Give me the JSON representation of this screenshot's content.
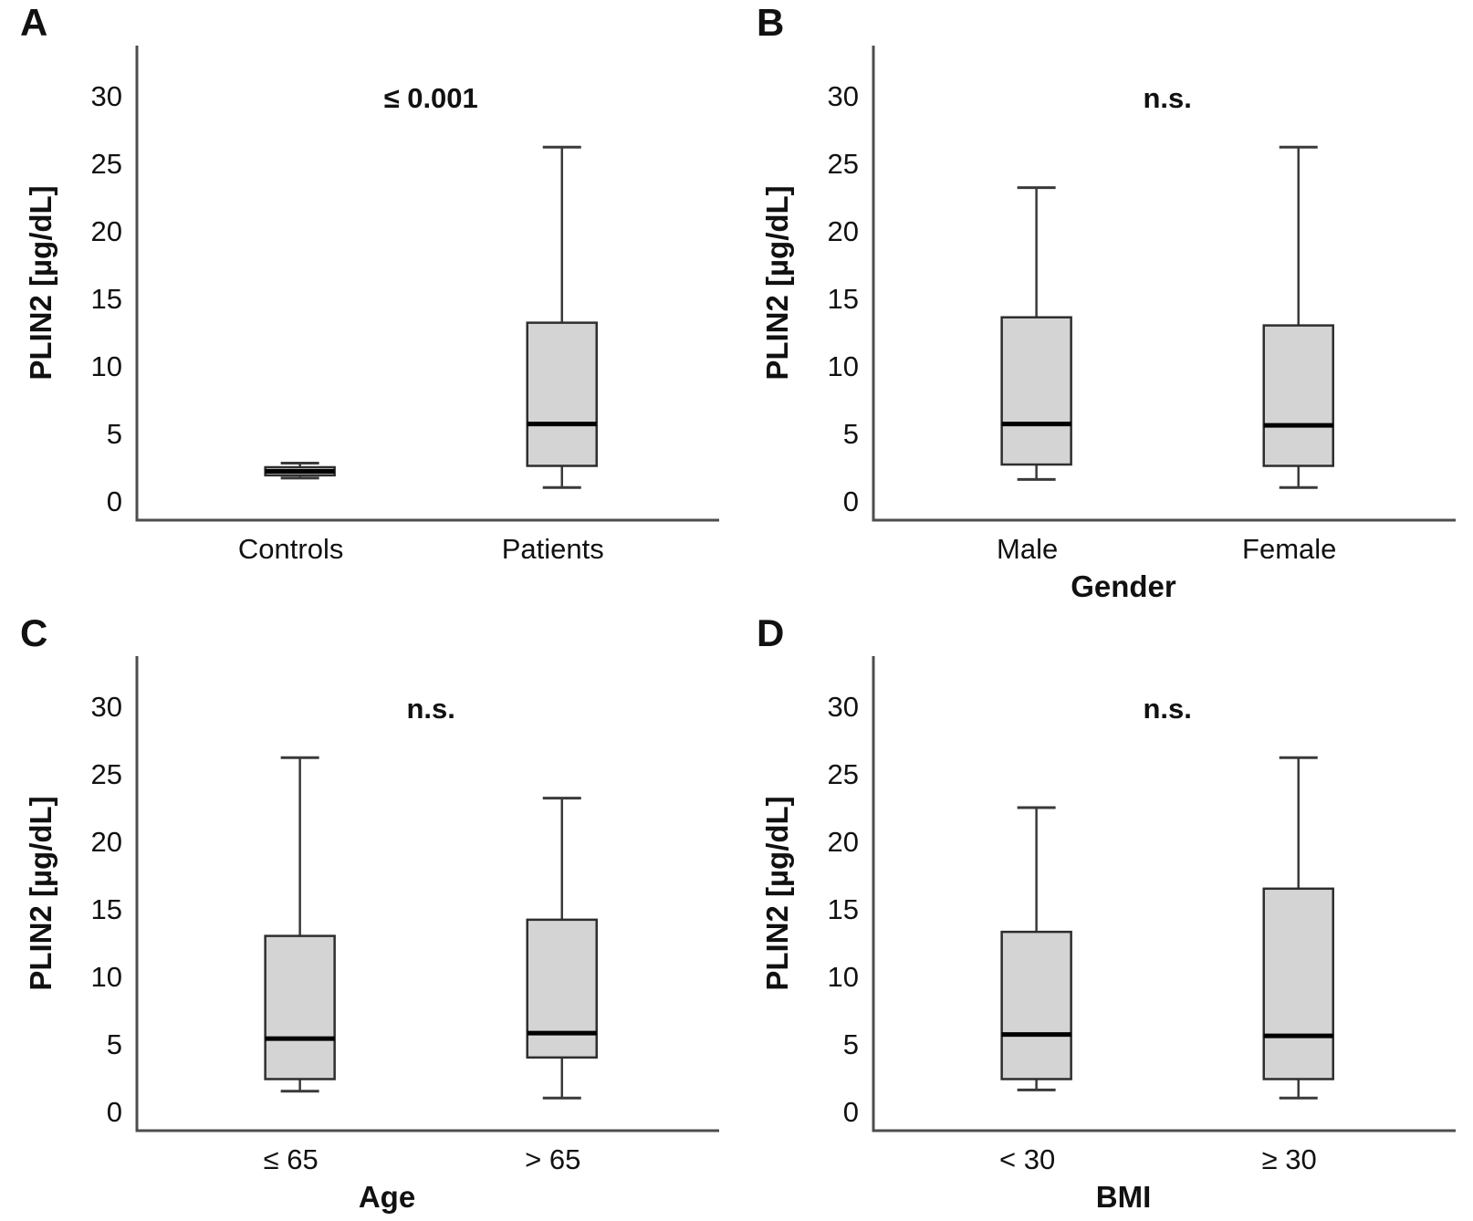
{
  "figure": {
    "background": "#ffffff",
    "description": "Four-panel box plot figure comparing PLIN2 serum levels"
  },
  "style": {
    "box_fill": "#d4d4d4",
    "box_border": "#2e2e2e",
    "median_color": "#000000",
    "whisker_color": "#3a3a3a",
    "axis_color": "#4d4d4d",
    "text_color": "#111111"
  },
  "chart_data": [
    {
      "panel": "A",
      "type": "box",
      "title": "",
      "ylabel": "PLIN2 [µg/dL]",
      "xlabel": "",
      "annotation": "≤ 0.001",
      "yticks": [
        0,
        5,
        10,
        15,
        20,
        25,
        30
      ],
      "ylim": [
        0,
        33
      ],
      "grid": false,
      "legend": "none",
      "categories": [
        "Controls",
        "Patients"
      ],
      "series": [
        {
          "category": "Controls",
          "min": 1.7,
          "q1": 1.9,
          "median": 2.2,
          "q3": 2.5,
          "max": 2.8
        },
        {
          "category": "Patients",
          "min": 1.0,
          "q1": 2.6,
          "median": 5.7,
          "q3": 13.2,
          "max": 26.2
        }
      ]
    },
    {
      "panel": "B",
      "type": "box",
      "title": "",
      "ylabel": "PLIN2 [µg/dL]",
      "xlabel": "Gender",
      "annotation": "n.s.",
      "yticks": [
        0,
        5,
        10,
        15,
        20,
        25,
        30
      ],
      "ylim": [
        0,
        33
      ],
      "grid": false,
      "legend": "none",
      "categories": [
        "Male",
        "Female"
      ],
      "series": [
        {
          "category": "Male",
          "min": 1.6,
          "q1": 2.7,
          "median": 5.7,
          "q3": 13.6,
          "max": 23.2
        },
        {
          "category": "Female",
          "min": 1.0,
          "q1": 2.6,
          "median": 5.6,
          "q3": 13.0,
          "max": 26.2
        }
      ]
    },
    {
      "panel": "C",
      "type": "box",
      "title": "",
      "ylabel": "PLIN2 [µg/dL]",
      "xlabel": "Age",
      "annotation": "n.s.",
      "yticks": [
        0,
        5,
        10,
        15,
        20,
        25,
        30
      ],
      "ylim": [
        0,
        33
      ],
      "grid": false,
      "legend": "none",
      "categories": [
        "≤ 65",
        "> 65"
      ],
      "series": [
        {
          "category": "≤ 65",
          "min": 1.5,
          "q1": 2.4,
          "median": 5.4,
          "q3": 13.0,
          "max": 26.2
        },
        {
          "category": "> 65",
          "min": 1.0,
          "q1": 4.0,
          "median": 5.8,
          "q3": 14.2,
          "max": 23.2
        }
      ]
    },
    {
      "panel": "D",
      "type": "box",
      "title": "",
      "ylabel": "PLIN2 [µg/dL]",
      "xlabel": "BMI",
      "annotation": "n.s.",
      "yticks": [
        0,
        5,
        10,
        15,
        20,
        25,
        30
      ],
      "ylim": [
        0,
        33
      ],
      "grid": false,
      "legend": "none",
      "categories": [
        "< 30",
        "≥ 30"
      ],
      "series": [
        {
          "category": "< 30",
          "min": 1.6,
          "q1": 2.4,
          "median": 5.7,
          "q3": 13.3,
          "max": 22.5
        },
        {
          "category": "≥ 30",
          "min": 1.0,
          "q1": 2.4,
          "median": 5.6,
          "q3": 16.5,
          "max": 26.2
        }
      ]
    }
  ]
}
